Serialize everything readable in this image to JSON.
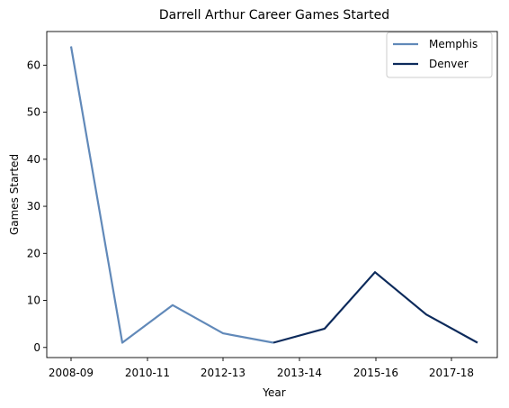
{
  "chart_data": {
    "type": "line",
    "title": "Darrell Arthur Career Games Started",
    "xlabel": "Year",
    "ylabel": "Games Started",
    "x_tick_labels": [
      "2008-09",
      "2010-11",
      "2012-13",
      "2013-14",
      "2015-16",
      "2017-18"
    ],
    "ylim": [
      -2.15,
      67.15
    ],
    "y_ticks": [
      0,
      10,
      20,
      30,
      40,
      50,
      60
    ],
    "legend_position": "top-right",
    "grid": false,
    "series": [
      {
        "name": "Memphis",
        "color": "#6189b9",
        "points": [
          {
            "season": "2008-09",
            "value": 64
          },
          {
            "season": "2009-10",
            "value": 1
          },
          {
            "season": "2010-11",
            "value": 9
          },
          {
            "season": "2011-12",
            "value": 3
          },
          {
            "season": "2012-13",
            "value": 1
          }
        ]
      },
      {
        "name": "Denver",
        "color": "#0c2a5b",
        "points": [
          {
            "season": "2012-13",
            "value": 1
          },
          {
            "season": "2013-14",
            "value": 4
          },
          {
            "season": "2014-15",
            "value": 16
          },
          {
            "season": "2015-16",
            "value": 7
          },
          {
            "season": "2016-17",
            "value": 1
          }
        ]
      }
    ]
  }
}
